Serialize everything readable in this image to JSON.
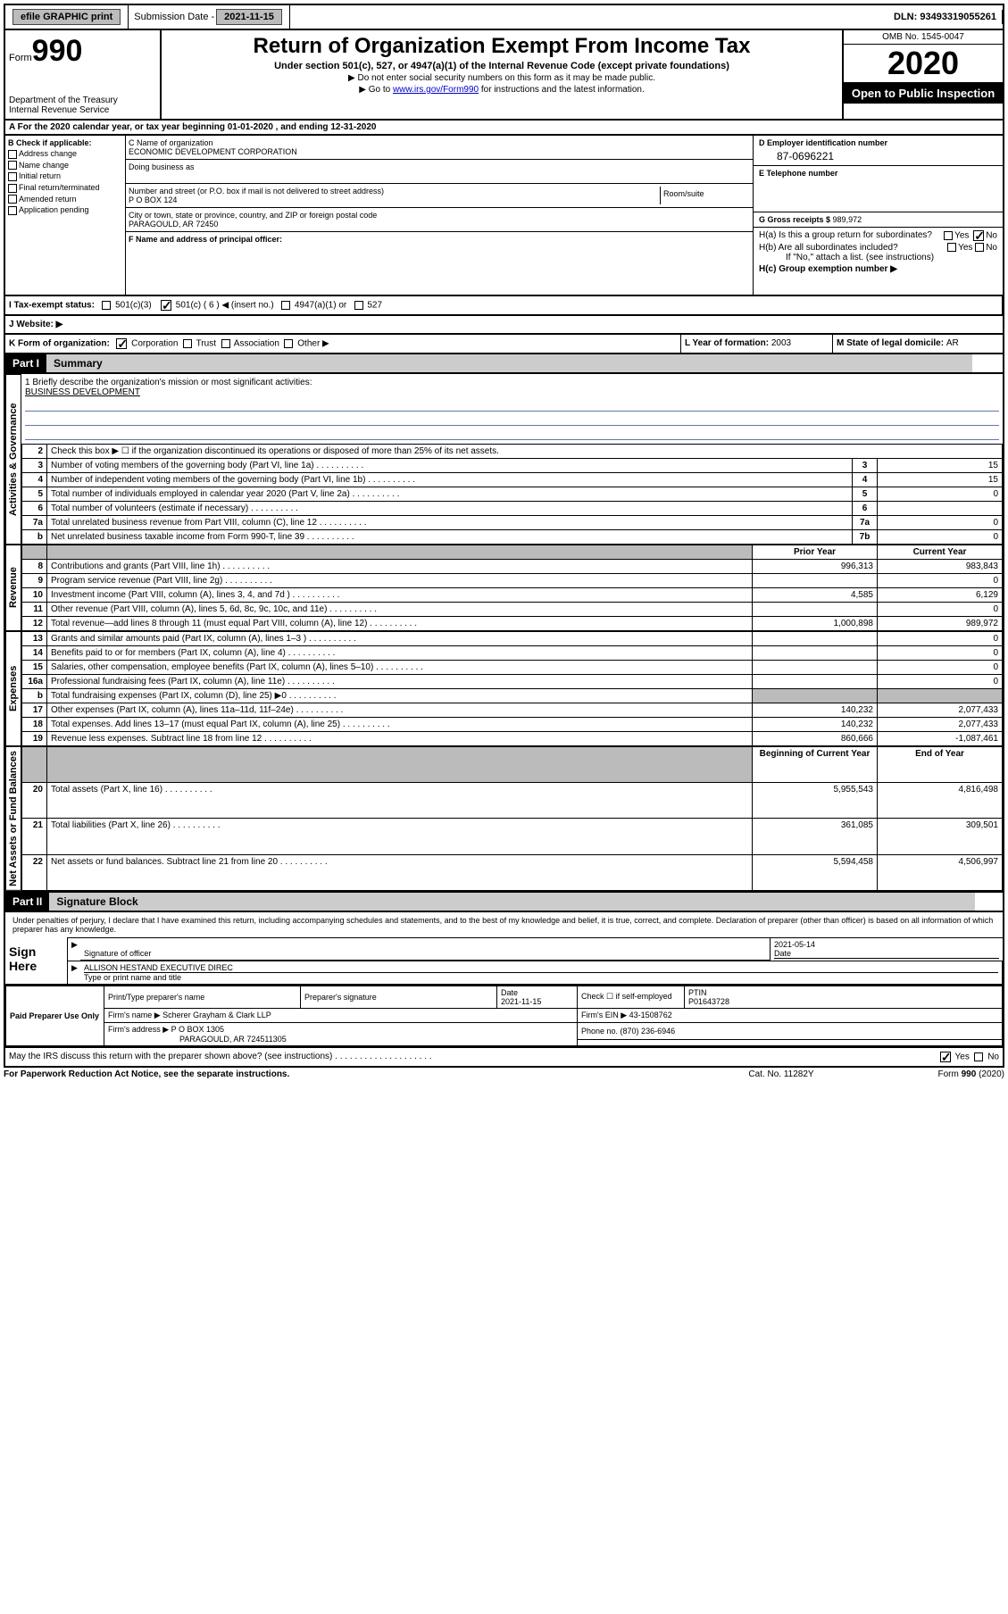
{
  "topbar": {
    "efile": "efile GRAPHIC print",
    "submission_label": "Submission Date - ",
    "submission_date": "2021-11-15",
    "dln_label": "DLN: ",
    "dln": "93493319055261"
  },
  "header": {
    "form_prefix": "Form",
    "form_num": "990",
    "dept": "Department of the Treasury\nInternal Revenue Service",
    "title": "Return of Organization Exempt From Income Tax",
    "subtitle": "Under section 501(c), 527, or 4947(a)(1) of the Internal Revenue Code (except private foundations)",
    "note1": "▶ Do not enter social security numbers on this form as it may be made public.",
    "note2_pre": "▶ Go to ",
    "note2_link": "www.irs.gov/Form990",
    "note2_post": " for instructions and the latest information.",
    "omb": "OMB No. 1545-0047",
    "year": "2020",
    "inspection": "Open to Public Inspection"
  },
  "sectionA": "A For the 2020 calendar year, or tax year beginning 01-01-2020   , and ending 12-31-2020",
  "colB": {
    "label": "B Check if applicable:",
    "items": [
      "Address change",
      "Name change",
      "Initial return",
      "Final return/terminated",
      "Amended return",
      "Application pending"
    ]
  },
  "colC": {
    "name_lbl": "C Name of organization",
    "name": "ECONOMIC DEVELOPMENT CORPORATION",
    "dba_lbl": "Doing business as",
    "addr_lbl": "Number and street (or P.O. box if mail is not delivered to street address)",
    "addr": "P O BOX 124",
    "room_lbl": "Room/suite",
    "city_lbl": "City or town, state or province, country, and ZIP or foreign postal code",
    "city": "PARAGOULD, AR  72450",
    "officer_lbl": "F Name and address of principal officer:"
  },
  "colD": {
    "ein_lbl": "D Employer identification number",
    "ein": "87-0696221",
    "tel_lbl": "E Telephone number",
    "gross_lbl": "G Gross receipts $ ",
    "gross": "989,972"
  },
  "sectionH": {
    "ha": "H(a)  Is this a group return for subordinates?",
    "hb": "H(b)  Are all subordinates included?",
    "hb_note": "If \"No,\" attach a list. (see instructions)",
    "hc": "H(c)  Group exemption number ▶",
    "yes": "Yes",
    "no": "No"
  },
  "taxExempt": {
    "i_lbl": "I    Tax-exempt status:",
    "opt1": "501(c)(3)",
    "opt2": "501(c) ( 6 ) ◀ (insert no.)",
    "opt3": "4947(a)(1) or",
    "opt4": "527"
  },
  "website_lbl": "J   Website: ▶",
  "sectionK": {
    "lbl": "K Form of organization:",
    "opts": [
      "Corporation",
      "Trust",
      "Association",
      "Other ▶"
    ],
    "l_lbl": "L Year of formation: ",
    "l_val": "2003",
    "m_lbl": "M State of legal domicile: ",
    "m_val": "AR"
  },
  "part1": {
    "hdr": "Part I",
    "title": "Summary"
  },
  "mission": {
    "lbl": "1  Briefly describe the organization's mission or most significant activities:",
    "val": "BUSINESS DEVELOPMENT"
  },
  "summary": {
    "vert_labels": [
      "Activities & Governance",
      "Revenue",
      "Expenses",
      "Net Assets or Fund Balances"
    ],
    "line2": "Check this box ▶ ☐  if the organization discontinued its operations or disposed of more than 25% of its net assets.",
    "rows_act": [
      {
        "n": "3",
        "t": "Number of voting members of the governing body (Part VI, line 1a)",
        "l": "3",
        "v": "15"
      },
      {
        "n": "4",
        "t": "Number of independent voting members of the governing body (Part VI, line 1b)",
        "l": "4",
        "v": "15"
      },
      {
        "n": "5",
        "t": "Total number of individuals employed in calendar year 2020 (Part V, line 2a)",
        "l": "5",
        "v": "0"
      },
      {
        "n": "6",
        "t": "Total number of volunteers (estimate if necessary)",
        "l": "6",
        "v": ""
      },
      {
        "n": "7a",
        "t": "Total unrelated business revenue from Part VIII, column (C), line 12",
        "l": "7a",
        "v": "0"
      },
      {
        "n": "b",
        "t": "Net unrelated business taxable income from Form 990-T, line 39",
        "l": "7b",
        "v": "0"
      }
    ],
    "col_hdrs": {
      "prior": "Prior Year",
      "current": "Current Year"
    },
    "rows_rev": [
      {
        "n": "8",
        "t": "Contributions and grants (Part VIII, line 1h)",
        "p": "996,313",
        "c": "983,843"
      },
      {
        "n": "9",
        "t": "Program service revenue (Part VIII, line 2g)",
        "p": "",
        "c": "0"
      },
      {
        "n": "10",
        "t": "Investment income (Part VIII, column (A), lines 3, 4, and 7d )",
        "p": "4,585",
        "c": "6,129"
      },
      {
        "n": "11",
        "t": "Other revenue (Part VIII, column (A), lines 5, 6d, 8c, 9c, 10c, and 11e)",
        "p": "",
        "c": "0"
      },
      {
        "n": "12",
        "t": "Total revenue—add lines 8 through 11 (must equal Part VIII, column (A), line 12)",
        "p": "1,000,898",
        "c": "989,972"
      }
    ],
    "rows_exp": [
      {
        "n": "13",
        "t": "Grants and similar amounts paid (Part IX, column (A), lines 1–3 )",
        "p": "",
        "c": "0"
      },
      {
        "n": "14",
        "t": "Benefits paid to or for members (Part IX, column (A), line 4)",
        "p": "",
        "c": "0"
      },
      {
        "n": "15",
        "t": "Salaries, other compensation, employee benefits (Part IX, column (A), lines 5–10)",
        "p": "",
        "c": "0"
      },
      {
        "n": "16a",
        "t": "Professional fundraising fees (Part IX, column (A), line 11e)",
        "p": "",
        "c": "0"
      },
      {
        "n": "b",
        "t": "Total fundraising expenses (Part IX, column (D), line 25) ▶0",
        "p": "shaded",
        "c": "shaded"
      },
      {
        "n": "17",
        "t": "Other expenses (Part IX, column (A), lines 11a–11d, 11f–24e)",
        "p": "140,232",
        "c": "2,077,433"
      },
      {
        "n": "18",
        "t": "Total expenses. Add lines 13–17 (must equal Part IX, column (A), line 25)",
        "p": "140,232",
        "c": "2,077,433"
      },
      {
        "n": "19",
        "t": "Revenue less expenses. Subtract line 18 from line 12",
        "p": "860,666",
        "c": "-1,087,461"
      }
    ],
    "col_hdrs2": {
      "begin": "Beginning of Current Year",
      "end": "End of Year"
    },
    "rows_net": [
      {
        "n": "20",
        "t": "Total assets (Part X, line 16)",
        "p": "5,955,543",
        "c": "4,816,498"
      },
      {
        "n": "21",
        "t": "Total liabilities (Part X, line 26)",
        "p": "361,085",
        "c": "309,501"
      },
      {
        "n": "22",
        "t": "Net assets or fund balances. Subtract line 21 from line 20",
        "p": "5,594,458",
        "c": "4,506,997"
      }
    ]
  },
  "part2": {
    "hdr": "Part II",
    "title": "Signature Block"
  },
  "perjury": "Under penalties of perjury, I declare that I have examined this return, including accompanying schedules and statements, and to the best of my knowledge and belief, it is true, correct, and complete. Declaration of preparer (other than officer) is based on all information of which preparer has any knowledge.",
  "sign": {
    "here": "Sign Here",
    "sig_lbl": "Signature of officer",
    "date_lbl": "Date",
    "date_val": "2021-05-14",
    "name_lbl": "Type or print name and title",
    "name_val": "ALLISON HESTAND  EXECUTIVE DIREC"
  },
  "prep": {
    "label": "Paid Preparer Use Only",
    "pname_lbl": "Print/Type preparer's name",
    "psig_lbl": "Preparer's signature",
    "pdate_lbl": "Date",
    "pdate": "2021-11-15",
    "pself_lbl": "Check ☐ if self-employed",
    "ptin_lbl": "PTIN",
    "ptin": "P01643728",
    "firm_name_lbl": "Firm's name    ▶",
    "firm_name": "Scherer Grayham & Clark LLP",
    "firm_ein_lbl": "Firm's EIN ▶",
    "firm_ein": "43-1508762",
    "firm_addr_lbl": "Firm's address ▶",
    "firm_addr1": "P O BOX 1305",
    "firm_addr2": "PARAGOULD, AR  724511305",
    "phone_lbl": "Phone no. ",
    "phone": "(870) 236-6946"
  },
  "discuss": "May the IRS discuss this return with the preparer shown above? (see instructions)",
  "footer": {
    "left": "For Paperwork Reduction Act Notice, see the separate instructions.",
    "mid": "Cat. No. 11282Y",
    "right": "Form 990 (2020)"
  }
}
